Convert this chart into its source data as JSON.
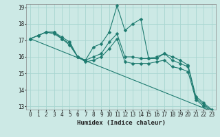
{
  "xlabel": "Humidex (Indice chaleur)",
  "xlim": [
    -0.5,
    23.5
  ],
  "ylim": [
    12.8,
    19.2
  ],
  "yticks": [
    13,
    14,
    15,
    16,
    17,
    18,
    19
  ],
  "xticks": [
    0,
    1,
    2,
    3,
    4,
    5,
    6,
    7,
    8,
    9,
    10,
    11,
    12,
    13,
    14,
    15,
    16,
    17,
    18,
    19,
    20,
    21,
    22,
    23
  ],
  "bg_color": "#cce9e5",
  "grid_color": "#a8d5d0",
  "line_color": "#1e7b70",
  "lines": [
    {
      "x": [
        0,
        1,
        2,
        3,
        4,
        5,
        6,
        7,
        8,
        9,
        10,
        11,
        12,
        13,
        14,
        15,
        16,
        17,
        18,
        19,
        20,
        21,
        22,
        23
      ],
      "y": [
        17.1,
        17.3,
        17.5,
        17.5,
        17.2,
        16.9,
        16.0,
        15.8,
        16.6,
        16.8,
        17.5,
        19.1,
        17.6,
        18.0,
        18.3,
        15.9,
        15.9,
        16.2,
        16.0,
        15.8,
        15.5,
        13.6,
        13.2,
        12.8
      ],
      "marker": "D",
      "ms": 2.5
    },
    {
      "x": [
        0,
        1,
        2,
        3,
        4,
        5,
        6,
        7,
        8,
        9,
        10,
        11,
        12,
        13,
        14,
        15,
        16,
        17,
        18,
        19,
        20,
        21,
        22,
        23
      ],
      "y": [
        17.1,
        17.3,
        17.5,
        17.5,
        17.1,
        16.8,
        16.0,
        15.8,
        16.0,
        16.2,
        16.9,
        17.4,
        16.0,
        16.0,
        15.9,
        15.9,
        16.0,
        16.2,
        15.8,
        15.6,
        15.4,
        13.5,
        13.1,
        12.75
      ],
      "marker": "D",
      "ms": 2.5
    },
    {
      "x": [
        0,
        1,
        2,
        3,
        4,
        5,
        6,
        7,
        8,
        9,
        10,
        11,
        12,
        13,
        14,
        15,
        16,
        17,
        18,
        19,
        20,
        21,
        22,
        23
      ],
      "y": [
        17.1,
        17.3,
        17.5,
        17.4,
        17.1,
        16.7,
        16.0,
        15.7,
        15.8,
        16.0,
        16.5,
        17.1,
        15.7,
        15.6,
        15.6,
        15.6,
        15.7,
        15.8,
        15.4,
        15.3,
        15.1,
        13.4,
        13.0,
        12.7
      ],
      "marker": "D",
      "ms": 2.5
    },
    {
      "x": [
        0,
        23
      ],
      "y": [
        17.1,
        12.7
      ],
      "marker": null,
      "ms": 0
    }
  ]
}
